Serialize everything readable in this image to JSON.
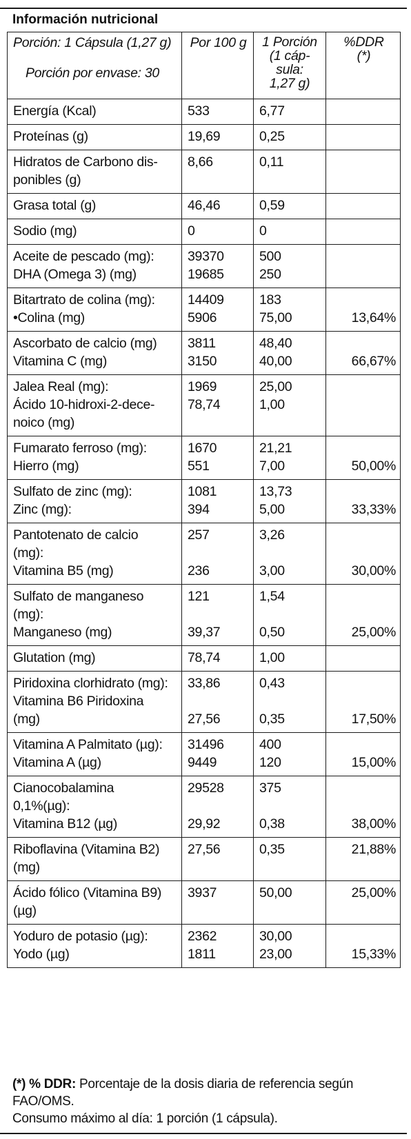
{
  "title": "Información nutricional",
  "header": {
    "serving": "Porción: 1 Cápsula (1,27 g)",
    "servings_per_container": "Porción por envase: 30",
    "col_per100": "Por 100 g",
    "col_portion": [
      "1 Porción",
      "(1 cáp-",
      "sula:",
      "1,27 g)"
    ],
    "col_ddr": [
      "%DDR",
      "(*)"
    ]
  },
  "rows": [
    {
      "name": [
        "Energía (Kcal)"
      ],
      "per100": [
        "533"
      ],
      "portion": [
        "6,77"
      ],
      "ddr": [
        ""
      ]
    },
    {
      "name": [
        "Proteínas (g)"
      ],
      "per100": [
        "19,69"
      ],
      "portion": [
        "0,25"
      ],
      "ddr": [
        ""
      ]
    },
    {
      "name": [
        "Hidratos de Carbono dis-",
        "ponibles (g)"
      ],
      "per100": [
        "8,66"
      ],
      "portion": [
        "0,11"
      ],
      "ddr": [
        ""
      ]
    },
    {
      "name": [
        "Grasa total (g)"
      ],
      "per100": [
        "46,46"
      ],
      "portion": [
        "0,59"
      ],
      "ddr": [
        ""
      ]
    },
    {
      "name": [
        "Sodio (mg)"
      ],
      "per100": [
        "0"
      ],
      "portion": [
        "0"
      ],
      "ddr": [
        ""
      ]
    },
    {
      "name": [
        "Aceite de pescado (mg):",
        "DHA (Omega 3) (mg)"
      ],
      "per100": [
        "39370",
        "19685"
      ],
      "portion": [
        "500",
        "250"
      ],
      "ddr": [
        "",
        ""
      ]
    },
    {
      "name": [
        "Bitartrato de colina (mg):",
        "•Colina (mg)"
      ],
      "per100": [
        "14409",
        "5906"
      ],
      "portion": [
        "183",
        "75,00"
      ],
      "ddr": [
        "",
        "13,64%"
      ]
    },
    {
      "name": [
        "Ascorbato de calcio (mg)",
        "Vitamina C (mg)"
      ],
      "per100": [
        "3811",
        "3150"
      ],
      "portion": [
        "48,40",
        "40,00"
      ],
      "ddr": [
        "",
        "66,67%"
      ]
    },
    {
      "name": [
        "Jalea Real (mg):",
        "Ácido 10-hidroxi-2-dece-",
        "noico (mg)"
      ],
      "per100": [
        "1969",
        "78,74"
      ],
      "portion": [
        "25,00",
        "1,00"
      ],
      "ddr": [
        ""
      ]
    },
    {
      "name": [
        "Fumarato ferroso (mg):",
        "Hierro (mg)"
      ],
      "per100": [
        "1670",
        "551"
      ],
      "portion": [
        "21,21",
        "7,00"
      ],
      "ddr": [
        "",
        "50,00%"
      ]
    },
    {
      "name": [
        "Sulfato de zinc (mg):",
        "Zinc (mg):"
      ],
      "per100": [
        "1081",
        "394"
      ],
      "portion": [
        "13,73",
        "5,00"
      ],
      "ddr": [
        "",
        "33,33%"
      ]
    },
    {
      "name": [
        "Pantotenato de calcio",
        "(mg):",
        "Vitamina B5 (mg)"
      ],
      "per100": [
        "257",
        "",
        "236"
      ],
      "portion": [
        "3,26",
        "",
        "3,00"
      ],
      "ddr": [
        "",
        "",
        "30,00%"
      ]
    },
    {
      "name": [
        "Sulfato de manganeso",
        "(mg):",
        "Manganeso (mg)"
      ],
      "per100": [
        "121",
        "",
        "39,37"
      ],
      "portion": [
        "1,54",
        "",
        "0,50"
      ],
      "ddr": [
        "",
        "",
        "25,00%"
      ]
    },
    {
      "name": [
        "Glutation (mg)"
      ],
      "per100": [
        "78,74"
      ],
      "portion": [
        "1,00"
      ],
      "ddr": [
        ""
      ]
    },
    {
      "name": [
        "Piridoxina clorhidrato (mg):",
        "Vitamina B6 Piridoxina",
        "(mg)"
      ],
      "per100": [
        "33,86",
        "",
        "27,56"
      ],
      "portion": [
        "0,43",
        "",
        "0,35"
      ],
      "ddr": [
        "",
        "",
        "17,50%"
      ]
    },
    {
      "name": [
        "Vitamina A Palmitato (µg):",
        "Vitamina A (µg)"
      ],
      "per100": [
        "31496",
        "9449"
      ],
      "portion": [
        "400",
        "120"
      ],
      "ddr": [
        "",
        "15,00%"
      ]
    },
    {
      "name": [
        "Cianocobalamina",
        "0,1%(µg):",
        "Vitamina B12 (µg)"
      ],
      "per100": [
        "29528",
        "",
        "29,92"
      ],
      "portion": [
        "375",
        "",
        "0,38"
      ],
      "ddr": [
        "",
        "",
        "38,00%"
      ]
    },
    {
      "name": [
        "Riboflavina (Vitamina B2)",
        "(mg)"
      ],
      "per100": [
        "27,56"
      ],
      "portion": [
        "0,35"
      ],
      "ddr": [
        "21,88%"
      ]
    },
    {
      "name": [
        "Ácido fólico (Vitamina B9)",
        "(µg)"
      ],
      "per100": [
        "3937"
      ],
      "portion": [
        "50,00"
      ],
      "ddr": [
        "25,00%"
      ]
    },
    {
      "name": [
        "Yoduro de potasio (µg):",
        "Yodo (µg)"
      ],
      "per100": [
        "2362",
        "1811"
      ],
      "portion": [
        "30,00",
        "23,00"
      ],
      "ddr": [
        "",
        "15,33%"
      ]
    }
  ],
  "footnote": {
    "mark": "(*) % DDR:",
    "text": " Porcentaje de la dosis diaria de referencia según FAO/OMS.",
    "max": "Consumo máximo al día: 1 porción (1 cápsula)."
  }
}
